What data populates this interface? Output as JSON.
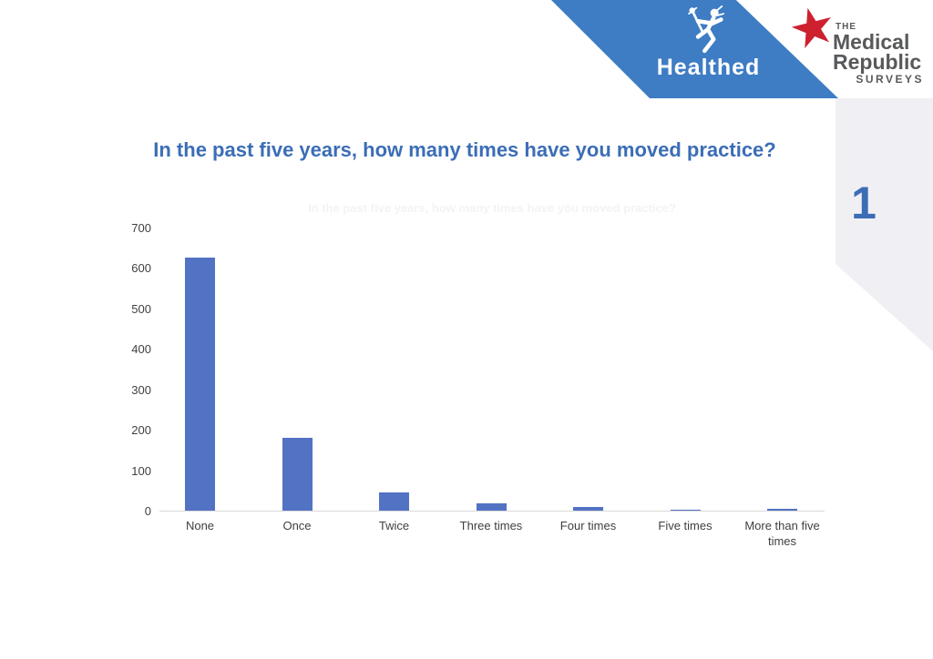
{
  "page": {
    "number": "1"
  },
  "header": {
    "healthed": {
      "wordmark": "Healthed",
      "band_color": "#3e7cc4"
    },
    "medical_republic": {
      "the": "THE",
      "line1": "Medical",
      "line2": "Republic",
      "line3": "SURVEYS",
      "text_color": "#58595b",
      "star_color": "#cd2130"
    }
  },
  "colors": {
    "title": "#3b6db6",
    "axis_line": "#d9d9d9",
    "tick_label": "#3f3f3f",
    "corner_panel": "#f0f0f4"
  },
  "chart_data": {
    "type": "bar",
    "title": "In the past five years, how many times have you moved practice?",
    "categories": [
      "None",
      "Once",
      "Twice",
      "Three times",
      "Four times",
      "Five times",
      "More than five times"
    ],
    "values": [
      625,
      180,
      45,
      18,
      8,
      2,
      5
    ],
    "xlabel": "",
    "ylabel": "",
    "ylim": [
      0,
      700
    ],
    "ytick_interval": 100,
    "grid": false,
    "legend": false,
    "bar_color": "#5272c4"
  }
}
